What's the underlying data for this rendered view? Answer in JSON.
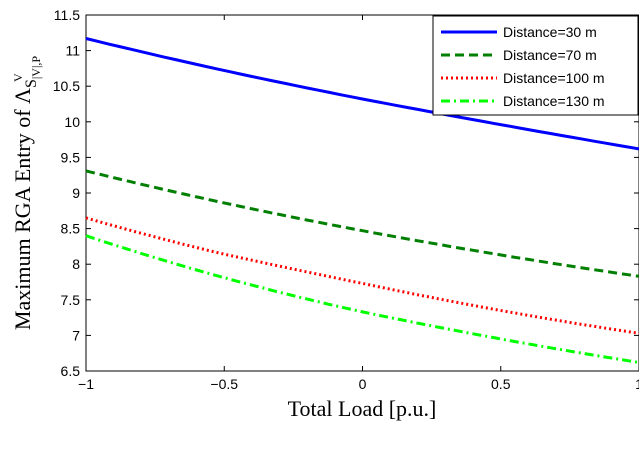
{
  "chart_data": {
    "type": "line",
    "xlabel": "Total Load [p.u.]",
    "ylabel": "Maximum RGA Entry of Λ",
    "ylabel_sub": "S",
    "ylabel_sup": "V",
    "ylabel_subsub": "|V|,P",
    "xlim": [
      -1,
      1
    ],
    "ylim": [
      6.5,
      11.5
    ],
    "xticks": [
      -1,
      -0.5,
      0,
      0.5,
      1
    ],
    "xtick_labels": [
      "−1",
      "−0.5",
      "0",
      "0.5",
      "1"
    ],
    "yticks": [
      6.5,
      7,
      7.5,
      8,
      8.5,
      9,
      9.5,
      10,
      10.5,
      11,
      11.5
    ],
    "ytick_labels": [
      "6.5",
      "7",
      "7.5",
      "8",
      "8.5",
      "9",
      "9.5",
      "10",
      "10.5",
      "11",
      "11.5"
    ],
    "grid": false,
    "legend_position": "top-right",
    "x": [
      -1,
      -0.5,
      0,
      0.5,
      1
    ],
    "series": [
      {
        "name": "Distance=30 m",
        "values": [
          11.17,
          10.72,
          10.32,
          9.96,
          9.62
        ],
        "color": "#0000ff",
        "dash": "solid"
      },
      {
        "name": "Distance=70 m",
        "values": [
          9.31,
          8.86,
          8.47,
          8.13,
          7.83
        ],
        "color": "#007f00",
        "dash": "dashed"
      },
      {
        "name": "Distance=100 m",
        "values": [
          8.65,
          8.14,
          7.73,
          7.35,
          7.03
        ],
        "color": "#ff0000",
        "dash": "dotted"
      },
      {
        "name": "Distance=130 m",
        "values": [
          8.4,
          7.81,
          7.33,
          6.95,
          6.62
        ],
        "color": "#00ff00",
        "dash": "dashdot"
      }
    ]
  }
}
